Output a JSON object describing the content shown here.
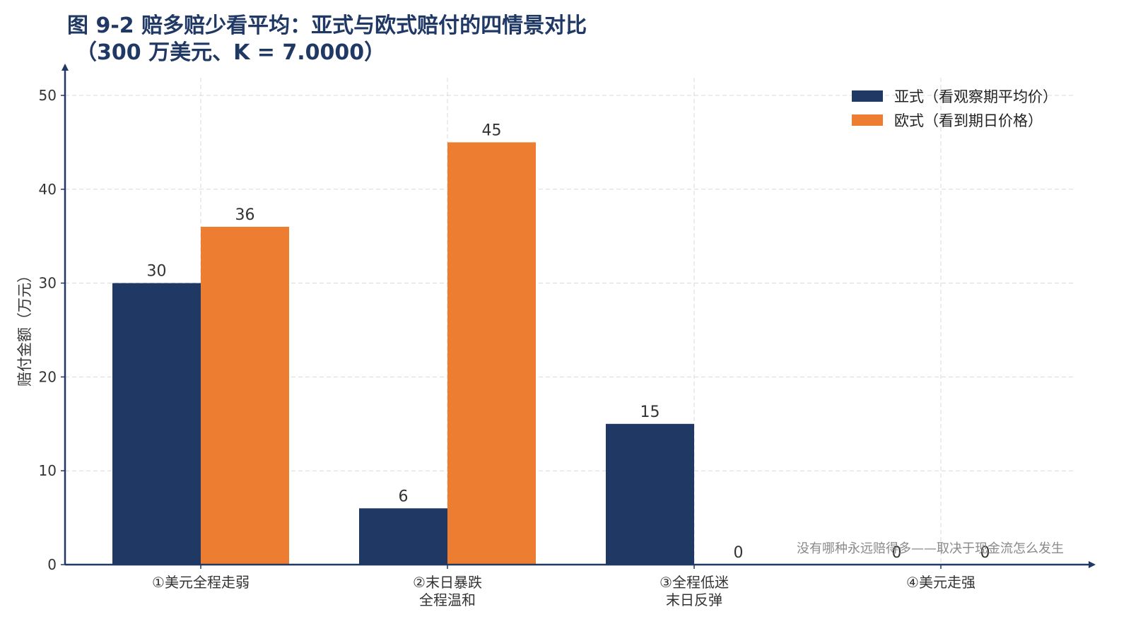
{
  "chart_data": {
    "type": "bar",
    "title_lines": [
      "图 9-2 赔多赔少看平均：亚式与欧式赔付的四情景对比",
      "（300 万美元、K = 7.0000）"
    ],
    "ylabel": "赔付金额（万元）",
    "xlabel": "",
    "ylim": [
      0,
      50
    ],
    "yticks": [
      0,
      10,
      20,
      30,
      40,
      50
    ],
    "grid": true,
    "legend_position": "top-right",
    "categories": [
      [
        "①美元全程走弱"
      ],
      [
        "②末日暴跌",
        "全程温和"
      ],
      [
        "③全程低迷",
        "末日反弹"
      ],
      [
        "④美元走强"
      ]
    ],
    "series": [
      {
        "name": "亚式（看观察期平均价）",
        "color": "#1f3864",
        "values": [
          30,
          6,
          15,
          0
        ]
      },
      {
        "name": "欧式（看到期日价格）",
        "color": "#ed7d31",
        "values": [
          36,
          45,
          0,
          0
        ]
      }
    ],
    "annotation": "没有哪种永远赔得多——取决于现金流怎么发生",
    "axis_color": "#1f3864",
    "grid_color": "#d9d9d9"
  }
}
